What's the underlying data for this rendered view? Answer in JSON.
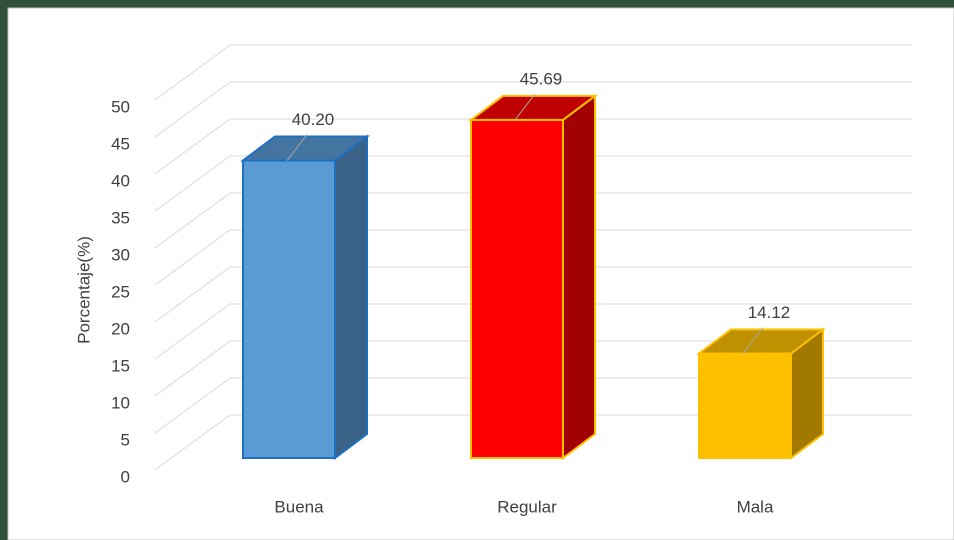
{
  "chart_data": {
    "type": "bar3d",
    "y_label": "Porcentaje(%)",
    "categories": [
      "Buena",
      "Regular",
      "Mala"
    ],
    "values": [
      40.2,
      45.69,
      14.12
    ],
    "value_labels": [
      "40.20",
      "45.69",
      "14.12"
    ],
    "colors": [
      "#5b9bd5",
      "#ff0000",
      "#ffc000"
    ],
    "ylim": [
      0,
      50
    ],
    "yticks": [
      0,
      5,
      10,
      15,
      20,
      25,
      30,
      35,
      40,
      45,
      50
    ],
    "grid": true
  }
}
